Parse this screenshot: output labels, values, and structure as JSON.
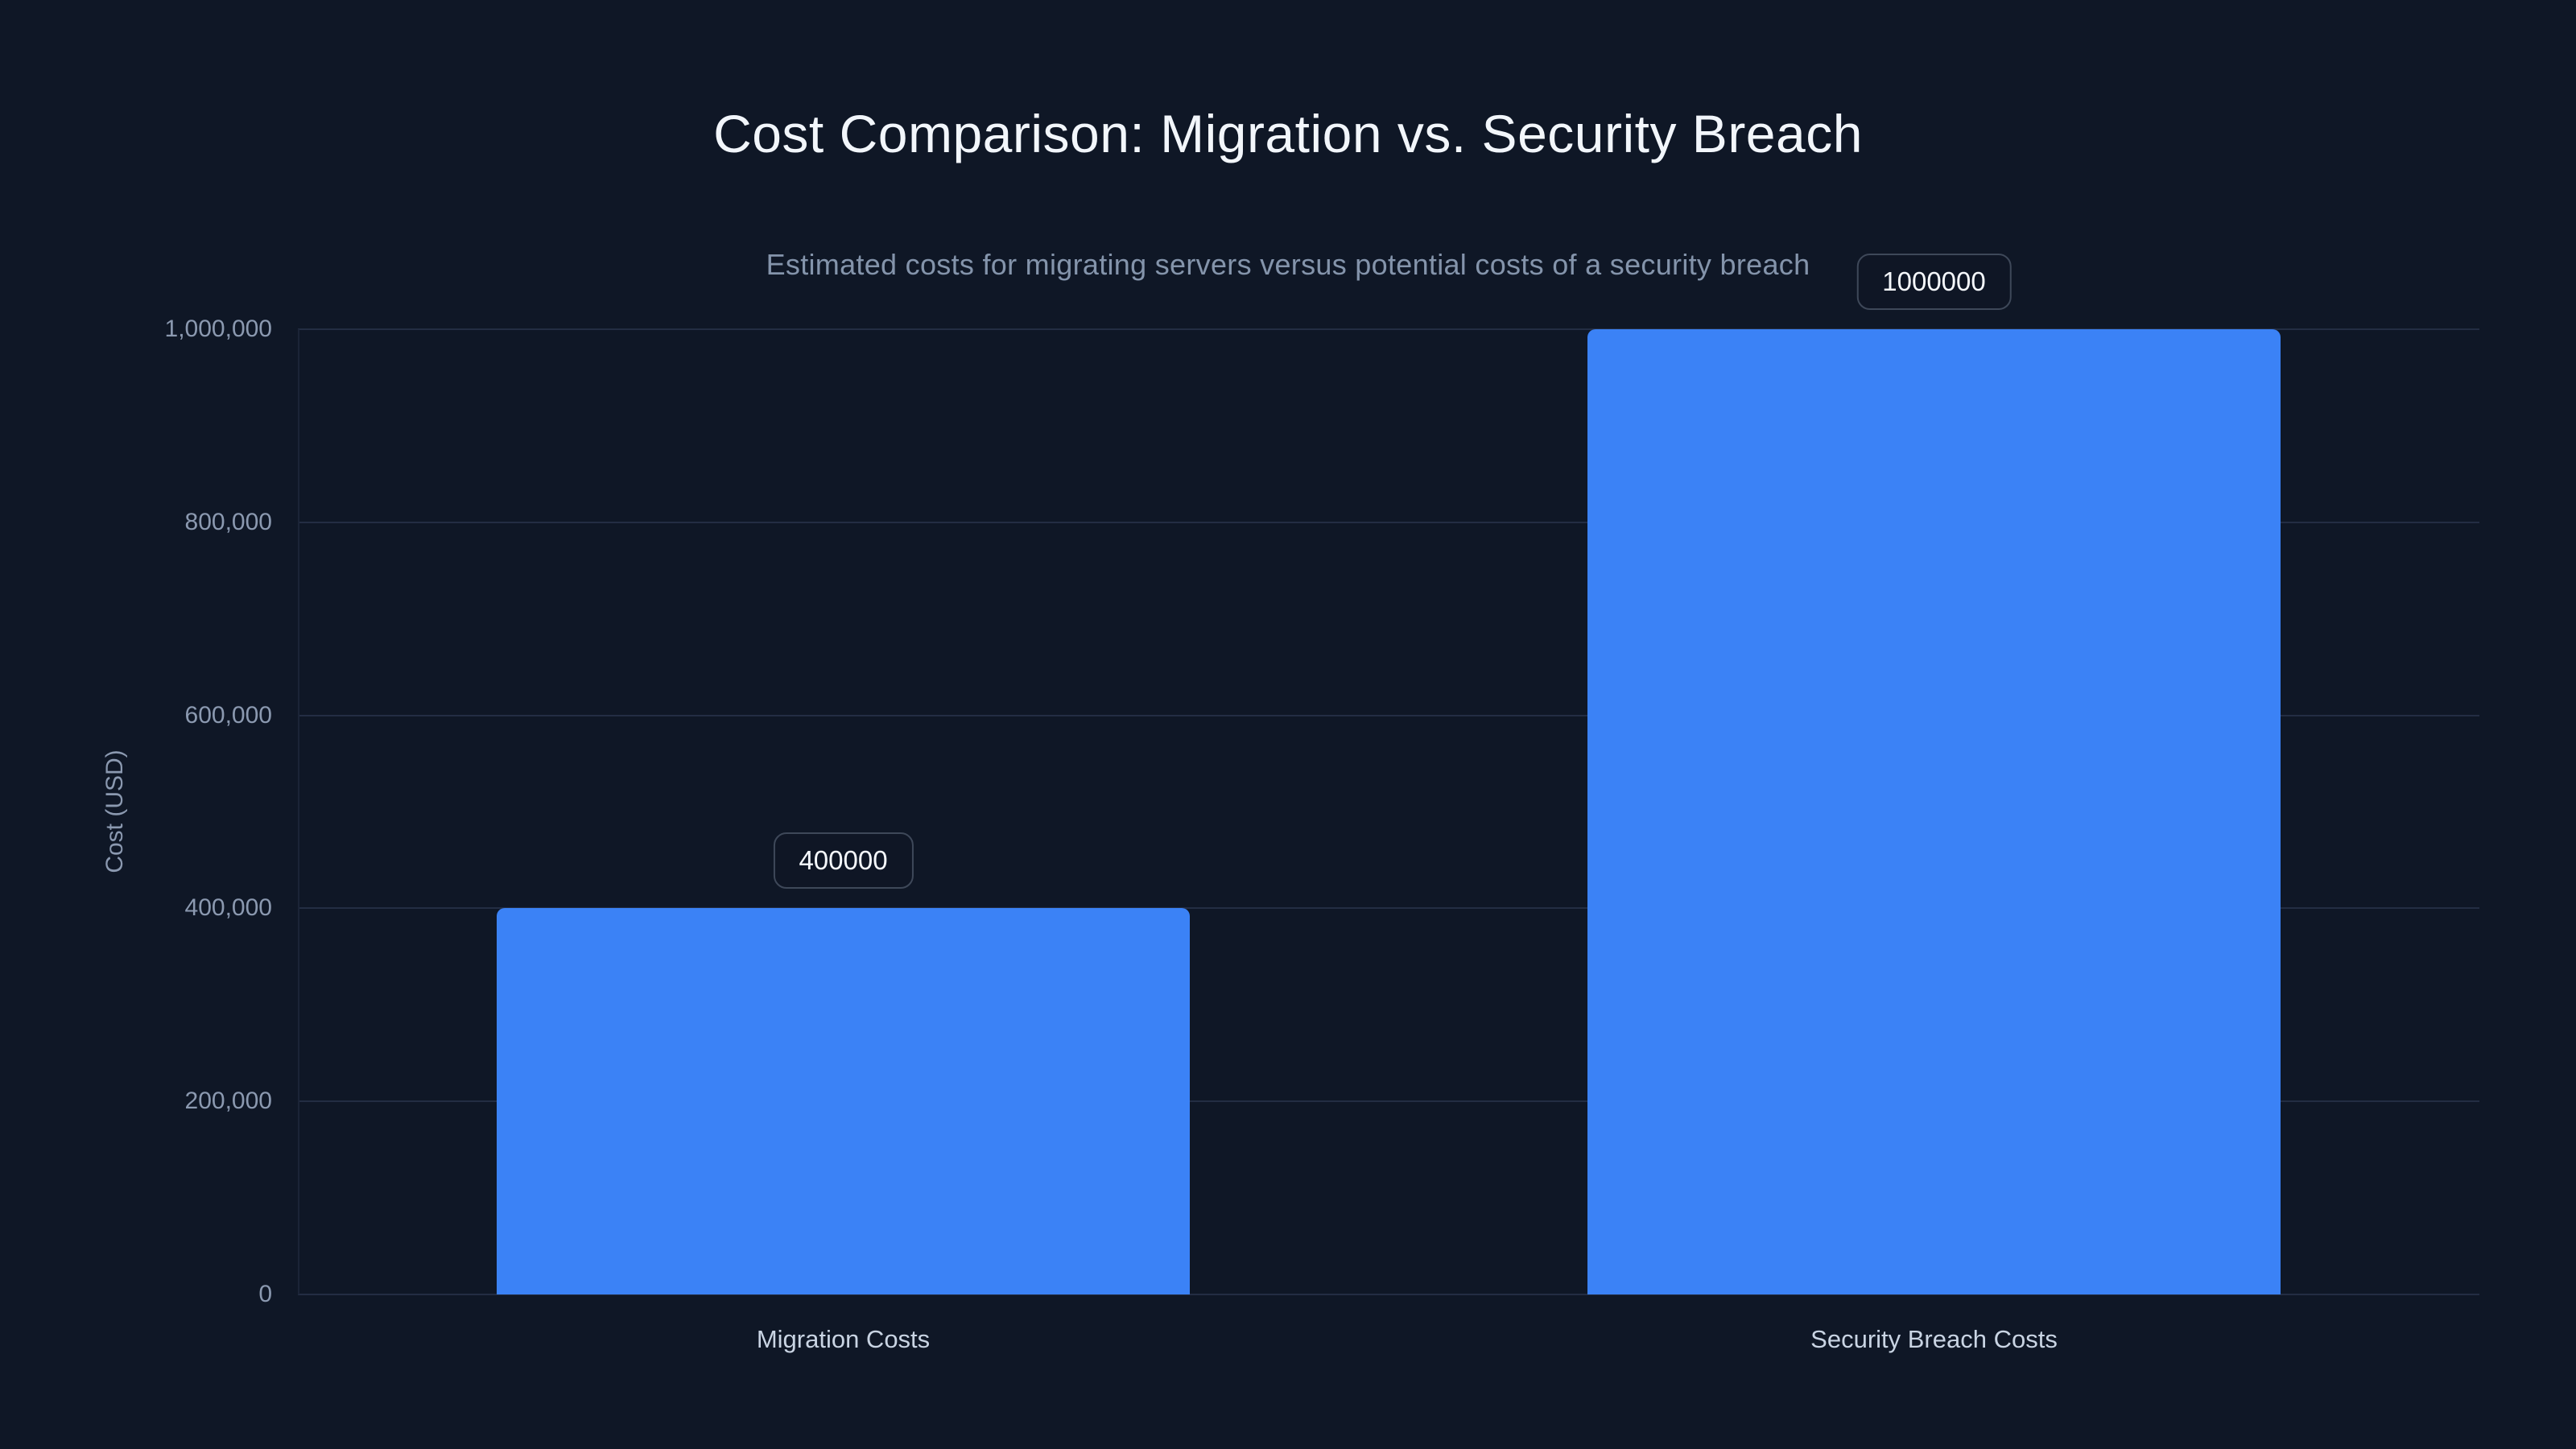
{
  "chart": {
    "title": "Cost Comparison: Migration vs. Security Breach",
    "subtitle": "Estimated costs for migrating servers versus potential costs of a security breach",
    "y_axis_title": "Cost (USD)"
  },
  "chart_data": {
    "type": "bar",
    "title": "Cost Comparison: Migration vs. Security Breach",
    "subtitle": "Estimated costs for migrating servers versus potential costs of a security breach",
    "categories": [
      "Migration Costs",
      "Security Breach Costs"
    ],
    "values": [
      400000,
      1000000
    ],
    "value_labels": [
      "400000",
      "1000000"
    ],
    "xlabel": "",
    "ylabel": "Cost (USD)",
    "ylim": [
      0,
      1000000
    ],
    "yticks": [
      0,
      200000,
      400000,
      600000,
      800000,
      1000000
    ],
    "ytick_labels": [
      "0",
      "200,000",
      "400,000",
      "600,000",
      "800,000",
      "1,000,000"
    ],
    "grid": "horizontal",
    "legend": "none",
    "colors": {
      "background": "#0f1726",
      "bar": "#3b82f6",
      "gridline": "#232d43",
      "axis_line": "#1b2437",
      "title_text": "#f2f6fb",
      "subtitle_text": "#8494ab",
      "tick_text": "#8b99b0",
      "category_text": "#c9d4e3",
      "value_badge_text": "#f5f8fc",
      "value_badge_border": "#3e4859"
    }
  }
}
